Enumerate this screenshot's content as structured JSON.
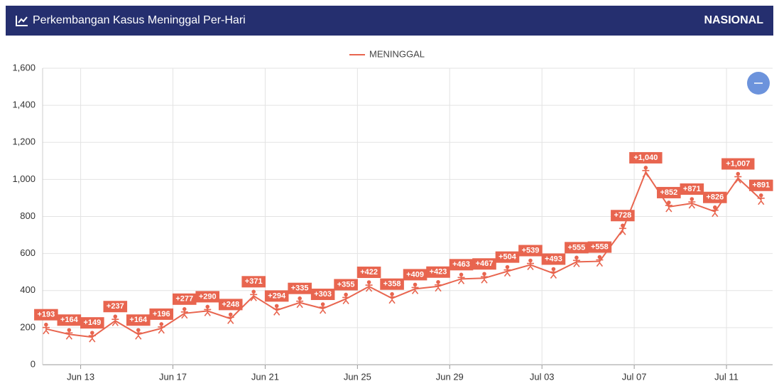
{
  "header": {
    "title": "Perkembangan Kasus Meninggal Per-Hari",
    "scope": "NASIONAL"
  },
  "chart_data": {
    "type": "line",
    "x": [
      0,
      1,
      2,
      3,
      4,
      5,
      6,
      7,
      8,
      9,
      10,
      11,
      12,
      13,
      14,
      15,
      16,
      17,
      18,
      19,
      20,
      21,
      22,
      23,
      24,
      25,
      26,
      27,
      28,
      29,
      30,
      31
    ],
    "series": [
      {
        "name": "MENINGGAL",
        "color": "#e8654f",
        "values": [
          193,
          164,
          149,
          237,
          164,
          196,
          277,
          290,
          248,
          371,
          294,
          335,
          303,
          355,
          422,
          358,
          409,
          423,
          463,
          467,
          504,
          539,
          493,
          555,
          558,
          728,
          1040,
          852,
          871,
          826,
          1007,
          891
        ],
        "value_labels": [
          "+193",
          "+164",
          "+149",
          "+237",
          "+164",
          "+196",
          "+277",
          "+290",
          "+248",
          "+371",
          "+294",
          "+335",
          "+303",
          "+355",
          "+422",
          "+358",
          "+409",
          "+423",
          "+463",
          "+467",
          "+504",
          "+539",
          "+493",
          "+555",
          "+558",
          "+728",
          "+1,040",
          "+852",
          "+871",
          "+826",
          "+1,007",
          "+891"
        ]
      }
    ],
    "xlim": [
      -0.15,
      31.5
    ],
    "xticks": [
      {
        "value": 1.5,
        "label": "Jun 13"
      },
      {
        "value": 5.5,
        "label": "Jun 17"
      },
      {
        "value": 9.5,
        "label": "Jun 21"
      },
      {
        "value": 13.5,
        "label": "Jun 25"
      },
      {
        "value": 17.5,
        "label": "Jun 29"
      },
      {
        "value": 21.5,
        "label": "Jul 03"
      },
      {
        "value": 25.5,
        "label": "Jul 07"
      },
      {
        "value": 29.5,
        "label": "Jul 11"
      }
    ],
    "ylim": [
      0,
      1600
    ],
    "yticks": [
      0,
      200,
      400,
      600,
      800,
      {
        "value": 1000,
        "label": "1,000"
      },
      {
        "value": 1200,
        "label": "1,200"
      },
      {
        "value": 1400,
        "label": "1,400"
      },
      {
        "value": 1600,
        "label": "1,600"
      }
    ],
    "grid": true,
    "legend": "top"
  }
}
